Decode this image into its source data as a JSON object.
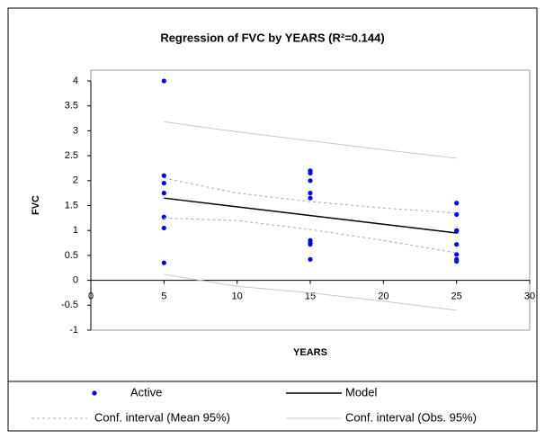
{
  "chart_data": {
    "type": "scatter",
    "title": "Regression of FVC by YEARS (R²=0.144)",
    "x_label": "YEARS",
    "y_label": "FVC",
    "xlim": [
      0,
      30
    ],
    "xticks": [
      0,
      5,
      10,
      15,
      20,
      25,
      30
    ],
    "ylim": [
      -1,
      4
    ],
    "yticks": [
      4,
      3.5,
      3,
      2.5,
      2,
      1.5,
      1,
      0.5,
      0,
      -0.5,
      -1
    ],
    "series": [
      {
        "name": "Active",
        "style": "marker",
        "color": "#0000ff",
        "x": [
          5,
          5,
          5,
          5,
          5,
          5,
          5,
          15,
          15,
          15,
          15,
          15,
          15,
          15,
          15,
          15,
          25,
          25,
          25,
          25,
          25,
          25,
          25,
          25
        ],
        "values": [
          4.0,
          2.1,
          1.95,
          1.75,
          1.27,
          1.05,
          0.35,
          2.2,
          2.15,
          2.0,
          1.75,
          1.65,
          0.8,
          0.75,
          0.72,
          0.42,
          1.55,
          1.32,
          1.0,
          0.98,
          0.72,
          0.52,
          0.42,
          0.38
        ]
      },
      {
        "name": "Model",
        "style": "line",
        "color": "#000000",
        "x": [
          5,
          25
        ],
        "values": [
          1.65,
          0.95
        ]
      },
      {
        "name": "Conf. interval (Mean 95%)",
        "style": "dash",
        "color": "#a8a8a8",
        "x": [
          5,
          10,
          15,
          20,
          25
        ],
        "values": [
          2.05,
          1.75,
          1.58,
          1.45,
          1.35
        ],
        "lower": [
          1.25,
          1.2,
          1.02,
          0.8,
          0.55
        ]
      },
      {
        "name": "Conf. interval (Obs. 95%)",
        "style": "line",
        "color": "#c8c8c8",
        "x": [
          5,
          10,
          15,
          20,
          25
        ],
        "values": [
          3.18,
          2.98,
          2.8,
          2.62,
          2.45
        ],
        "lower": [
          0.12,
          -0.12,
          -0.25,
          -0.42,
          -0.6
        ]
      }
    ]
  }
}
